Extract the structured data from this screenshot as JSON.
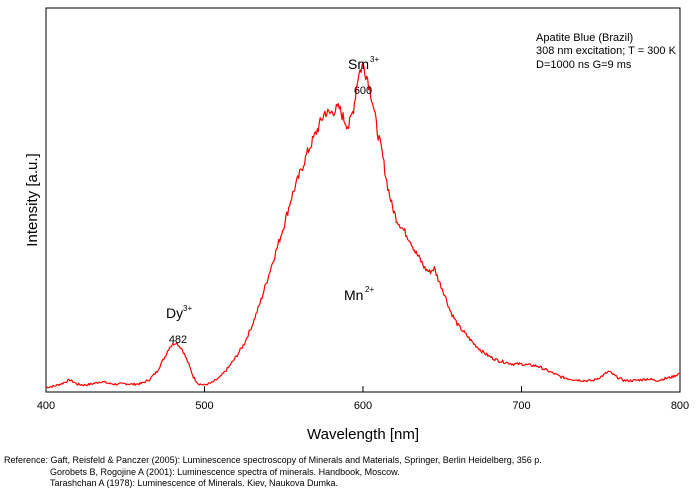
{
  "chart_data": {
    "type": "line",
    "xlabel": "Wavelength [nm]",
    "ylabel": "Intensity [a.u.]",
    "xlim": [
      400,
      800
    ],
    "ylim": [
      0,
      1
    ],
    "xticks": [
      "400",
      "500",
      "600",
      "700",
      "800"
    ],
    "grid": false,
    "legend": [
      "Apatite Blue (Brazil)",
      "308 nm excitation; T = 300 K",
      "D=1000 ns  G=9 ms"
    ],
    "annotations": [
      {
        "ion": "Dy",
        "charge": "3+",
        "peak": "482"
      },
      {
        "ion": "Sm",
        "charge": "3+",
        "peak": "600"
      },
      {
        "ion": "Mn",
        "charge": "2+",
        "peak": ""
      }
    ],
    "series": [
      {
        "color": "#ff0000",
        "x": [
          400,
          405,
          410,
          415,
          420,
          425,
          430,
          435,
          440,
          445,
          450,
          455,
          460,
          465,
          470,
          475,
          478,
          482,
          486,
          490,
          493,
          496,
          500,
          505,
          510,
          515,
          520,
          525,
          530,
          535,
          540,
          545,
          550,
          555,
          560,
          565,
          570,
          573,
          576,
          579,
          582,
          585,
          588,
          591,
          594,
          597,
          600,
          603,
          606,
          609,
          612,
          615,
          618,
          621,
          624,
          627,
          630,
          633,
          636,
          639,
          642,
          645,
          648,
          651,
          655,
          660,
          665,
          670,
          675,
          680,
          685,
          690,
          695,
          700,
          705,
          710,
          715,
          720,
          725,
          730,
          735,
          740,
          745,
          750,
          755,
          760,
          765,
          770,
          775,
          780,
          785,
          790,
          795,
          800
        ],
        "y": [
          0.002,
          0.005,
          0.012,
          0.022,
          0.01,
          0.008,
          0.012,
          0.018,
          0.012,
          0.01,
          0.012,
          0.01,
          0.012,
          0.022,
          0.045,
          0.085,
          0.112,
          0.125,
          0.105,
          0.065,
          0.03,
          0.012,
          0.008,
          0.015,
          0.03,
          0.055,
          0.085,
          0.12,
          0.17,
          0.23,
          0.3,
          0.37,
          0.44,
          0.52,
          0.58,
          0.64,
          0.69,
          0.72,
          0.75,
          0.745,
          0.755,
          0.76,
          0.73,
          0.71,
          0.76,
          0.85,
          0.88,
          0.84,
          0.78,
          0.7,
          0.64,
          0.56,
          0.5,
          0.46,
          0.44,
          0.42,
          0.4,
          0.37,
          0.35,
          0.325,
          0.315,
          0.325,
          0.29,
          0.26,
          0.21,
          0.17,
          0.145,
          0.12,
          0.1,
          0.085,
          0.075,
          0.07,
          0.065,
          0.065,
          0.062,
          0.06,
          0.05,
          0.04,
          0.03,
          0.025,
          0.022,
          0.02,
          0.02,
          0.03,
          0.045,
          0.03,
          0.02,
          0.02,
          0.022,
          0.025,
          0.02,
          0.025,
          0.03,
          0.04
        ]
      }
    ]
  },
  "references": [
    "Reference: Gaft, Reisfeld & Panczer (2005): Luminescence spectroscopy of Minerals and Materials, Springer, Berlin Heidelberg, 356 p.",
    "Gorobets B, Rogojine A (2001): Luminescence spectra of minerals. Handbook, Moscow.",
    "Tarashchan A (1978): Luminescence of Minerals. Kiev, Naukova Dumka."
  ]
}
